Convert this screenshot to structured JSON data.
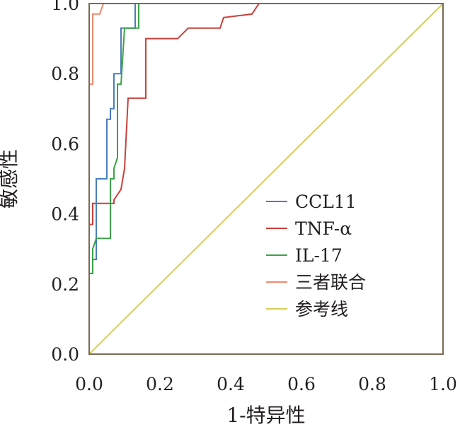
{
  "chart_data": {
    "type": "line",
    "title": "",
    "xlabel": "1-特异性",
    "ylabel": "敏感性",
    "xlim": [
      0,
      1
    ],
    "ylim": [
      0,
      1
    ],
    "x_ticks": [
      "0.0",
      "0.2",
      "0.4",
      "0.6",
      "0.8",
      "1.0"
    ],
    "y_ticks": [
      "0.0",
      "0.2",
      "0.4",
      "0.6",
      "0.8",
      "1.0"
    ],
    "grid": false,
    "legend_position": "lower-right",
    "series": [
      {
        "name": "CCL11",
        "color": "#4a7ebb",
        "points": [
          [
            0,
            0
          ],
          [
            0,
            0.23
          ],
          [
            0.01,
            0.23
          ],
          [
            0.01,
            0.27
          ],
          [
            0.02,
            0.27
          ],
          [
            0.02,
            0.5
          ],
          [
            0.05,
            0.5
          ],
          [
            0.05,
            0.67
          ],
          [
            0.06,
            0.67
          ],
          [
            0.06,
            0.7
          ],
          [
            0.07,
            0.7
          ],
          [
            0.07,
            0.8
          ],
          [
            0.09,
            0.8
          ],
          [
            0.09,
            0.93
          ],
          [
            0.13,
            0.93
          ],
          [
            0.13,
            1.0
          ],
          [
            1,
            1
          ]
        ]
      },
      {
        "name": "TNF-α",
        "color": "#c9403a",
        "points": [
          [
            0,
            0
          ],
          [
            0,
            0.37
          ],
          [
            0.01,
            0.37
          ],
          [
            0.01,
            0.43
          ],
          [
            0.07,
            0.43
          ],
          [
            0.07,
            0.44
          ],
          [
            0.09,
            0.47
          ],
          [
            0.1,
            0.53
          ],
          [
            0.11,
            0.73
          ],
          [
            0.16,
            0.73
          ],
          [
            0.16,
            0.9
          ],
          [
            0.25,
            0.9
          ],
          [
            0.28,
            0.93
          ],
          [
            0.37,
            0.93
          ],
          [
            0.38,
            0.96
          ],
          [
            0.46,
            0.97
          ],
          [
            0.48,
            1.0
          ],
          [
            1,
            1
          ]
        ]
      },
      {
        "name": "IL-17",
        "color": "#3aa447",
        "points": [
          [
            0,
            0
          ],
          [
            0,
            0.23
          ],
          [
            0.01,
            0.23
          ],
          [
            0.01,
            0.3
          ],
          [
            0.02,
            0.33
          ],
          [
            0.06,
            0.33
          ],
          [
            0.06,
            0.5
          ],
          [
            0.07,
            0.5
          ],
          [
            0.07,
            0.53
          ],
          [
            0.08,
            0.56
          ],
          [
            0.08,
            0.77
          ],
          [
            0.09,
            0.77
          ],
          [
            0.1,
            0.93
          ],
          [
            0.14,
            0.93
          ],
          [
            0.14,
            1.0
          ],
          [
            1,
            1
          ]
        ]
      },
      {
        "name": "三者联合",
        "color": "#f08a6e",
        "points": [
          [
            0,
            0
          ],
          [
            0,
            0.77
          ],
          [
            0.01,
            0.77
          ],
          [
            0.01,
            0.97
          ],
          [
            0.03,
            0.97
          ],
          [
            0.04,
            1.0
          ],
          [
            1,
            1
          ]
        ]
      },
      {
        "name": "参考线",
        "color": "#d8ce52",
        "points": [
          [
            0,
            0
          ],
          [
            1,
            1
          ]
        ]
      }
    ]
  }
}
